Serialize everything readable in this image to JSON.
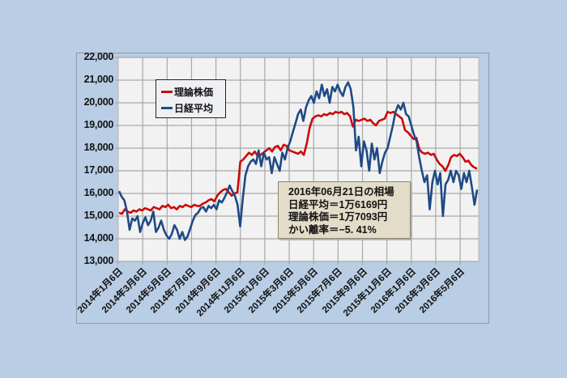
{
  "chart_data": {
    "type": "line",
    "title": "",
    "xlabel": "",
    "ylabel": "",
    "ylim": [
      13000,
      22000
    ],
    "yticks": [
      "22,000",
      "21,000",
      "20,000",
      "19,000",
      "18,000",
      "17,000",
      "16,000",
      "15,000",
      "14,000",
      "13,000"
    ],
    "xtick_labels": [
      "2014年1月6日",
      "2014年3月6日",
      "2014年5月6日",
      "2014年7月6日",
      "2014年9月6日",
      "2014年11月6日",
      "2015年1月6日",
      "2015年3月6日",
      "2015年5月6日",
      "2015年7月6日",
      "2015年9月6日",
      "2015年11月6日",
      "2016年1月6日",
      "2016年3月6日",
      "2016年5月6日"
    ],
    "grid": true,
    "legend_position": "upper left (inset)",
    "colors": {
      "theoretical": "#cc0a0a",
      "nikkei": "#1e4a86"
    },
    "x_range": [
      "2014-01-06",
      "2016-06-21"
    ],
    "series": [
      {
        "name": "理論株価",
        "values": [
          15150,
          15100,
          15300,
          15200,
          15150,
          15250,
          15200,
          15300,
          15250,
          15350,
          15300,
          15250,
          15400,
          15350,
          15300,
          15450,
          15400,
          15500,
          15350,
          15400,
          15300,
          15450,
          15400,
          15500,
          15450,
          15400,
          15500,
          15450,
          15450,
          15550,
          15600,
          15700,
          15750,
          15650,
          15900,
          16050,
          16150,
          16200,
          16050,
          15900,
          16000,
          16050,
          17400,
          17500,
          17650,
          17800,
          17700,
          17850,
          17650,
          17700,
          17800,
          17900,
          18000,
          17850,
          18050,
          18100,
          17900,
          18150,
          18100,
          17900,
          17850,
          17800,
          17750,
          17850,
          17700,
          18200,
          18900,
          19300,
          19400,
          19450,
          19400,
          19500,
          19450,
          19550,
          19500,
          19600,
          19550,
          19600,
          19500,
          19550,
          19400,
          18950,
          19250,
          19200,
          19250,
          19300,
          19200,
          19250,
          19100,
          19000,
          19200,
          19250,
          19300,
          19600,
          19550,
          19600,
          19500,
          19400,
          19300,
          18800,
          18700,
          18550,
          18400,
          18450,
          17950,
          17800,
          17750,
          17800,
          17700,
          17750,
          17500,
          17300,
          17200,
          17000,
          17250,
          17600,
          17700,
          17650,
          17750,
          17600,
          17400,
          17450,
          17250,
          17150,
          17093
        ],
        "end_value": 17093
      },
      {
        "name": "日経平均",
        "values": [
          16100,
          15850,
          15700,
          15200,
          14400,
          14900,
          14800,
          15000,
          14300,
          14700,
          14950,
          14600,
          14800,
          15200,
          14300,
          14500,
          14800,
          14400,
          14150,
          14000,
          14200,
          14600,
          14400,
          14000,
          14300,
          13950,
          14100,
          14450,
          14800,
          15050,
          15150,
          15350,
          15400,
          15200,
          15450,
          15350,
          15500,
          15300,
          15700,
          15600,
          15800,
          16050,
          16350,
          16100,
          15900,
          15500,
          14550,
          15800,
          16800,
          17200,
          17400,
          17500,
          17300,
          17900,
          17200,
          17800,
          17500,
          17600,
          16900,
          17600,
          17300,
          17000,
          17800,
          17500,
          18000,
          18300,
          18700,
          19100,
          19500,
          19700,
          19200,
          19800,
          20100,
          20300,
          20000,
          20500,
          20200,
          20800,
          20300,
          20600,
          20000,
          20700,
          20500,
          20800,
          20500,
          20300,
          20700,
          20900,
          20600,
          19800,
          17900,
          18500,
          17200,
          18300,
          17900,
          17000,
          18200,
          17500,
          18000,
          16900,
          17400,
          17800,
          18000,
          18500,
          19000,
          19600,
          19900,
          19700,
          20000,
          19500,
          19400,
          19000,
          18600,
          18300,
          17600,
          17000,
          16500,
          16800,
          15300,
          16500,
          17000,
          16400,
          16900,
          15000,
          16400,
          16600,
          17000,
          16500,
          17000,
          16800,
          16200,
          16900,
          16500,
          17000,
          16300,
          15500,
          16169
        ],
        "end_value": 16169
      }
    ]
  },
  "legend": {
    "items": [
      {
        "label": "理論株価",
        "color": "#cc0a0a"
      },
      {
        "label": "日経平均",
        "color": "#1e4a86"
      }
    ]
  },
  "info_box": {
    "line1": "2016年06月21日の相場",
    "line2": "日経平均＝1万6169円",
    "line3": "理論株価＝1万7093円",
    "line4": "かい離率＝−5. 41%"
  },
  "colors": {
    "background": "#b9cde4",
    "plot_background": "#f2f2f2",
    "gridline": "#a8a8a8",
    "info_box_bg": "#e2dcc8"
  }
}
